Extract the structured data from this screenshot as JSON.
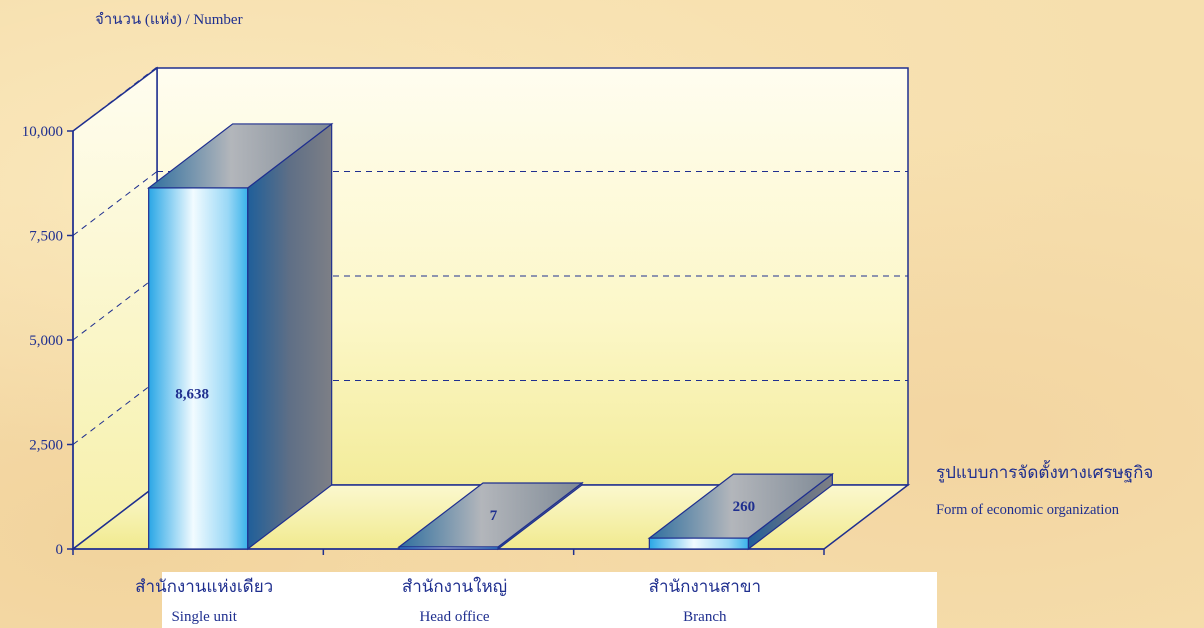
{
  "chart_data": {
    "type": "bar",
    "ylabel": "จำนวน (แห่ง)  /  Number",
    "xlabel_th": "รูปแบบการจัดตั้งทางเศรษฐกิจ",
    "xlabel_en": "Form of  economic organization",
    "categories": [
      {
        "th": "สำนักงานแห่งเดียว",
        "en": "Single unit"
      },
      {
        "th": "สำนักงานใหญ่",
        "en": "Head office"
      },
      {
        "th": "สำนักงานสาขา",
        "en": "Branch"
      }
    ],
    "values": [
      8638,
      7,
      260
    ],
    "value_labels": [
      "8,638",
      "7",
      "260"
    ],
    "yticks": [
      0,
      2500,
      5000,
      7500,
      10000
    ],
    "ytick_labels": [
      "0",
      "2,500",
      "5,000",
      "7,500",
      "10,000"
    ],
    "ylim": [
      0,
      10000
    ],
    "grid": true,
    "colors": {
      "axis": "#1f2f8f",
      "bar_front_light": "#e8f6ff",
      "bar_front_dark": "#39b6ee",
      "bar_top": "#9aa0a8",
      "bar_side": "#4b5f86",
      "floor": "#f4f0a0"
    }
  }
}
